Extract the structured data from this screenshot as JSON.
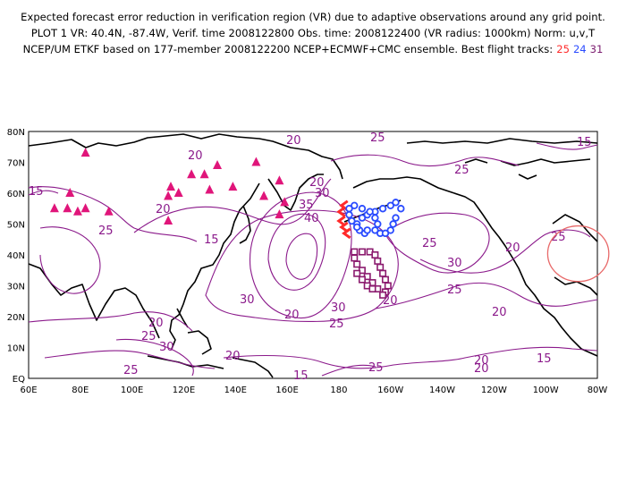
{
  "header": {
    "line1": "Expected forecast error reduction in verification region (VR) due to adaptive observations around any grid point.",
    "line2": "PLOT 1 VR: 40.4N, -87.4W, Verif. time 2008122800 Obs. time: 2008122400 (VR radius: 1000km) Norm: u,v,T",
    "line3_prefix": "NCEP/UM ETKF based on 177-member 2008122200 NCEP+ECMWF+CMC ensemble. Best flight tracks:",
    "track_red": "25",
    "track_blue": "24",
    "track_purple": "31"
  },
  "axes": {
    "lon_labels": [
      "60E",
      "80E",
      "100E",
      "120E",
      "140E",
      "160E",
      "180",
      "160W",
      "140W",
      "120W",
      "100W",
      "80W"
    ],
    "lat_labels": [
      "EQ",
      "10N",
      "20N",
      "30N",
      "40N",
      "50N",
      "60N",
      "70N",
      "80N"
    ]
  },
  "contour_labels": [
    {
      "text": "20"
    },
    {
      "text": "25"
    },
    {
      "text": "15"
    },
    {
      "text": "15"
    },
    {
      "text": "20"
    },
    {
      "text": "25"
    },
    {
      "text": "20"
    },
    {
      "text": "30"
    },
    {
      "text": "35"
    },
    {
      "text": "40"
    },
    {
      "text": "25"
    },
    {
      "text": "15"
    },
    {
      "text": "25"
    },
    {
      "text": "20"
    },
    {
      "text": "30"
    },
    {
      "text": "25"
    },
    {
      "text": "20"
    },
    {
      "text": "30"
    },
    {
      "text": "30"
    },
    {
      "text": "20"
    },
    {
      "text": "25"
    },
    {
      "text": "20"
    },
    {
      "text": "25"
    },
    {
      "text": "20"
    },
    {
      "text": "20"
    },
    {
      "text": "25"
    },
    {
      "text": "30"
    },
    {
      "text": "20"
    },
    {
      "text": "15"
    },
    {
      "text": "25"
    },
    {
      "text": "20"
    },
    {
      "text": "15"
    },
    {
      "text": "25"
    },
    {
      "text": "20"
    }
  ],
  "colors": {
    "contour": "#8b1a8b",
    "triangles": "#e0157a",
    "track_red": "#ff2a2a",
    "track_blue": "#2a4bff",
    "track_purple": "#8b1a6e",
    "vr_circle": "#e86a6a"
  },
  "verification_region": {
    "lat": 40.4,
    "lon": -87.4,
    "radius_km": 1000
  },
  "observation_sites_latlon": [
    [
      73,
      82
    ],
    [
      60,
      76
    ],
    [
      55,
      70
    ],
    [
      55,
      75
    ],
    [
      54,
      79
    ],
    [
      55,
      82
    ],
    [
      54,
      91
    ],
    [
      62,
      115
    ],
    [
      59,
      114
    ],
    [
      51,
      114
    ],
    [
      60,
      118
    ],
    [
      66,
      123
    ],
    [
      61,
      130
    ],
    [
      69,
      133
    ],
    [
      66,
      128
    ],
    [
      62,
      139
    ],
    [
      70,
      148
    ],
    [
      59,
      151
    ],
    [
      64,
      157
    ],
    [
      57,
      159
    ],
    [
      53,
      157
    ]
  ],
  "track_red_latlon": [
    [
      56,
      -178
    ],
    [
      54,
      -179
    ],
    [
      51,
      -179
    ],
    [
      49,
      -178
    ],
    [
      47,
      -177
    ]
  ],
  "track_blue_latlon": [
    [
      57,
      -158
    ],
    [
      56,
      -160
    ],
    [
      55,
      -163
    ],
    [
      54,
      -166
    ],
    [
      53,
      -169
    ],
    [
      52,
      -171
    ],
    [
      50,
      -173
    ],
    [
      48,
      -172
    ],
    [
      47,
      -170
    ],
    [
      48,
      -166
    ],
    [
      50,
      -165
    ],
    [
      52,
      -166
    ],
    [
      54,
      -168
    ],
    [
      55,
      -171
    ],
    [
      56,
      -174
    ],
    [
      55,
      -176
    ],
    [
      53,
      -176
    ],
    [
      51,
      -175
    ],
    [
      49,
      -173
    ],
    [
      48,
      -169
    ],
    [
      47,
      -164
    ],
    [
      47,
      -162
    ],
    [
      48,
      -160
    ],
    [
      50,
      -159
    ],
    [
      52,
      -158
    ],
    [
      55,
      -156
    ]
  ],
  "track_purple_latlon": [
    [
      41,
      -174
    ],
    [
      41,
      -171
    ],
    [
      41,
      -168
    ],
    [
      40,
      -166
    ],
    [
      38,
      -165
    ],
    [
      36,
      -164
    ],
    [
      34,
      -163
    ],
    [
      32,
      -162
    ],
    [
      30,
      -161
    ],
    [
      28,
      -162
    ],
    [
      27,
      -163
    ],
    [
      29,
      -165
    ],
    [
      31,
      -167
    ],
    [
      33,
      -169
    ],
    [
      35,
      -171
    ],
    [
      37,
      -173
    ],
    [
      39,
      -174
    ],
    [
      34,
      -173
    ],
    [
      32,
      -171
    ],
    [
      30,
      -169
    ],
    [
      29,
      -167
    ]
  ]
}
